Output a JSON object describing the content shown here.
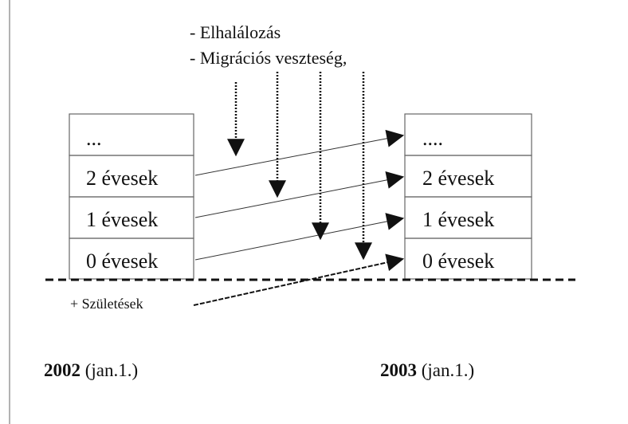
{
  "losses": [
    "- Elhalálozás",
    "- Migrációs veszteség,"
  ],
  "left_column": {
    "rows": [
      "...",
      "2 évesek",
      "1 évesek",
      "0 évesek"
    ]
  },
  "right_column": {
    "rows": [
      "....",
      "2 évesek",
      "1 évesek",
      "0 évesek"
    ]
  },
  "births": "+ Születések",
  "years": [
    {
      "year": "2002",
      "date": "(jan.1.)"
    },
    {
      "year": "2003",
      "date": "(jan.1.)"
    }
  ]
}
